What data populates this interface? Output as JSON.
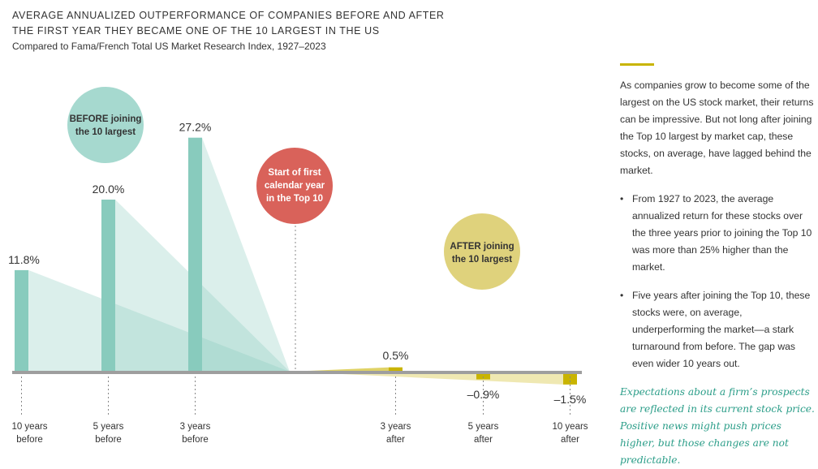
{
  "title_line1": "AVERAGE ANNUALIZED OUTPERFORMANCE OF COMPANIES BEFORE AND AFTER",
  "title_line2": "THE FIRST YEAR THEY BECAME ONE OF THE 10 LARGEST IN THE US",
  "subtitle": "Compared to Fama/French Total US Market Research Index, 1927–2023",
  "chart_data": {
    "type": "bar",
    "title": "Average annualized outperformance of companies before and after the first year they became one of the 10 largest in the US",
    "subtitle": "Compared to Fama/French Total US Market Research Index, 1927–2023",
    "categories": [
      "10 years before",
      "5 years before",
      "3 years before",
      "3 years after",
      "5 years after",
      "10 years after"
    ],
    "values": [
      11.8,
      20.0,
      27.2,
      0.5,
      -0.9,
      -1.5
    ],
    "labels": [
      "11.8%",
      "20.0%",
      "27.2%",
      "0.5%",
      "–0.9%",
      "–1.5%"
    ],
    "ticks": [
      {
        "line1": "10 years",
        "line2": "before"
      },
      {
        "line1": "5 years",
        "line2": "before"
      },
      {
        "line1": "3 years",
        "line2": "before"
      },
      {
        "line1": "3 years",
        "line2": "after"
      },
      {
        "line1": "5 years",
        "line2": "after"
      },
      {
        "line1": "10 years",
        "line2": "after"
      }
    ],
    "unit": "%",
    "colors": {
      "before": "#88cbbd",
      "after": "#c9b400",
      "axis": "#9e9e9e",
      "center": "#d9625a",
      "before_circle": "#a6d9cf",
      "after_circle": "#dfd27c"
    },
    "annotations": {
      "before": {
        "line1": "BEFORE joining",
        "line2": "the 10 largest"
      },
      "center": {
        "line1": "Start of first",
        "line2": "calendar year",
        "line3": "in the Top 10"
      },
      "after": {
        "line1": "AFTER joining",
        "line2": "the 10 largest"
      }
    }
  },
  "sidebar": {
    "intro": "As companies grow to become some of the largest on the US stock market, their returns can be impressive. But not long after joining the Top 10 largest by market cap, these stocks, on average, have lagged behind the market.",
    "bullets": [
      "From 1927 to 2023, the average annualized return for these stocks over the three years prior to joining the Top 10 was more than 25% higher than the market.",
      "Five years after joining the Top 10, these stocks were, on average, underperforming the market—a stark turnaround from before. The gap was even wider 10 years out."
    ],
    "quote": "Expectations about a firm’s prospects are reflected in its current stock price. Positive news might push prices higher, but those changes are not predictable."
  }
}
